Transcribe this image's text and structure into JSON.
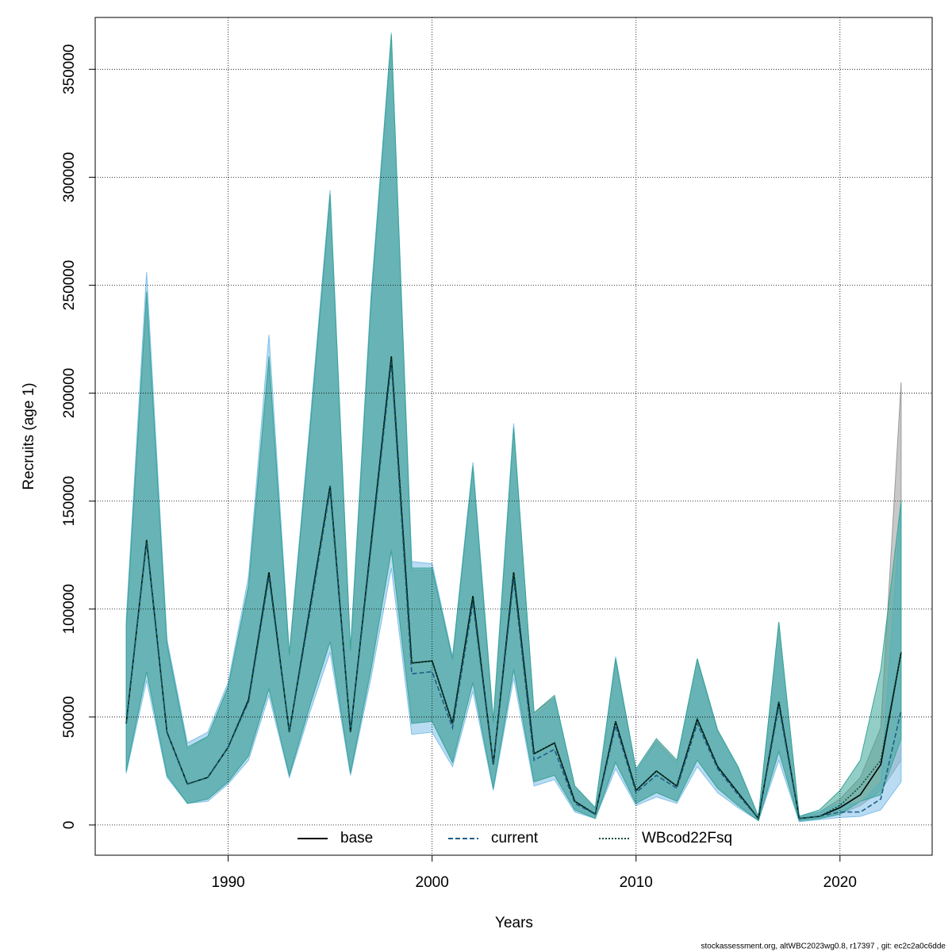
{
  "chart_data": {
    "type": "line",
    "x_label": "Years",
    "y_label": "Recruits (age 1)",
    "footnote": "stockassessment.org, altWBC2023wg0.8, r17397 , git: ec2c2a0c6dde",
    "x": [
      1985,
      1986,
      1987,
      1988,
      1989,
      1990,
      1991,
      1992,
      1993,
      1994,
      1995,
      1996,
      1997,
      1998,
      1999,
      2000,
      2001,
      2002,
      2003,
      2004,
      2005,
      2006,
      2007,
      2008,
      2009,
      2010,
      2011,
      2012,
      2013,
      2014,
      2015,
      2016,
      2017,
      2018,
      2019,
      2020,
      2021,
      2022,
      2023
    ],
    "xlim": [
      1983.48,
      2024.52
    ],
    "xticks": [
      1990,
      2000,
      2010,
      2020
    ],
    "ylim": [
      -14000,
      374000
    ],
    "yticks": [
      0,
      50000,
      100000,
      150000,
      200000,
      250000,
      300000,
      350000
    ],
    "grid": true,
    "legend": "bottom",
    "series": [
      {
        "name": "base",
        "color": "#000000",
        "band_color": "#9a9a9a",
        "dash": "solid",
        "values": [
          47000,
          132000,
          43000,
          19000,
          22000,
          36000,
          58000,
          117000,
          43000,
          100000,
          157000,
          43000,
          130000,
          217000,
          75000,
          76000,
          47000,
          106000,
          28000,
          117000,
          33000,
          38000,
          11000,
          5000,
          48000,
          16000,
          25000,
          18000,
          49000,
          27000,
          15000,
          3000,
          57000,
          3000,
          4000,
          8000,
          14000,
          28000,
          80000
        ],
        "upper": [
          90000,
          245000,
          83000,
          35000,
          41000,
          64000,
          110000,
          215000,
          78000,
          180000,
          290000,
          80000,
          240000,
          365000,
          118000,
          118000,
          76000,
          165000,
          47000,
          183000,
          52000,
          59000,
          18000,
          8000,
          76000,
          25000,
          39000,
          29000,
          76000,
          43000,
          27000,
          4000,
          93000,
          4000,
          6000,
          12000,
          22000,
          45000,
          205000
        ],
        "lower": [
          25000,
          71000,
          23000,
          10000,
          12000,
          20000,
          32000,
          63000,
          23000,
          55000,
          85000,
          24000,
          72000,
          128000,
          47000,
          48000,
          29000,
          66000,
          17000,
          72000,
          20000,
          23000,
          7000,
          3000,
          29000,
          10000,
          15000,
          11000,
          30000,
          17000,
          9000,
          2000,
          34000,
          2000,
          3000,
          5000,
          9000,
          16000,
          30000
        ]
      },
      {
        "name": "current",
        "color": "#1f5f8b",
        "band_color": "#7fbfea",
        "dash": "dashed",
        "values": [
          47000,
          131000,
          43000,
          19000,
          22000,
          36000,
          57000,
          115000,
          43000,
          98000,
          155000,
          43000,
          128000,
          214000,
          70000,
          71000,
          45000,
          103000,
          28000,
          114000,
          30000,
          35000,
          10000,
          5000,
          46000,
          15000,
          23000,
          17000,
          47000,
          26000,
          14000,
          3000,
          55000,
          3000,
          4000,
          6000,
          6000,
          12000,
          53000
        ],
        "upper": [
          95000,
          256000,
          86000,
          38000,
          43000,
          66000,
          115000,
          227000,
          80000,
          185000,
          294000,
          82000,
          245000,
          367000,
          122000,
          121000,
          78000,
          168000,
          49000,
          186000,
          50000,
          58000,
          18000,
          8000,
          78000,
          25000,
          38000,
          28000,
          77000,
          44000,
          26000,
          4000,
          94000,
          4000,
          6000,
          10000,
          10000,
          20000,
          150000
        ],
        "lower": [
          24000,
          67000,
          22000,
          10000,
          11000,
          19000,
          30000,
          60000,
          22000,
          52000,
          80000,
          23000,
          68000,
          119000,
          42000,
          43000,
          27000,
          62000,
          16000,
          68000,
          18000,
          21000,
          6000,
          3000,
          26000,
          9000,
          13000,
          10000,
          27000,
          15000,
          8000,
          2000,
          30000,
          1500,
          2500,
          3500,
          4000,
          7000,
          20000
        ]
      },
      {
        "name": "WBcod22Fsq",
        "color": "#0b4d3a",
        "band_color": "#3aa597",
        "dash": "dotted",
        "values": [
          47000,
          132000,
          43000,
          19000,
          22000,
          36000,
          58000,
          116000,
          43000,
          100000,
          157000,
          43000,
          129000,
          216000,
          75000,
          76000,
          47000,
          105000,
          28000,
          116000,
          33000,
          38000,
          11000,
          5000,
          48000,
          16000,
          25000,
          18000,
          49000,
          27000,
          15000,
          3000,
          57000,
          3000,
          4000,
          9000,
          18000,
          30000,
          80000
        ],
        "upper": [
          92000,
          247000,
          84000,
          36000,
          41000,
          64000,
          111000,
          217000,
          79000,
          182000,
          292000,
          81000,
          242000,
          366000,
          119000,
          119000,
          77000,
          166000,
          48000,
          184000,
          52000,
          60000,
          18000,
          8000,
          77000,
          26000,
          40000,
          30000,
          77000,
          44000,
          27000,
          4000,
          94000,
          4000,
          7000,
          16000,
          30000,
          72000,
          150000
        ],
        "lower": [
          25000,
          71000,
          23000,
          10000,
          12000,
          20000,
          32000,
          63000,
          23000,
          55000,
          85000,
          24000,
          72000,
          127000,
          47000,
          48000,
          29000,
          66000,
          17000,
          72000,
          20000,
          23000,
          7000,
          3000,
          29000,
          10000,
          15000,
          11000,
          30000,
          17000,
          9000,
          2000,
          34000,
          2000,
          3000,
          5000,
          11000,
          14000,
          40000
        ]
      }
    ]
  }
}
